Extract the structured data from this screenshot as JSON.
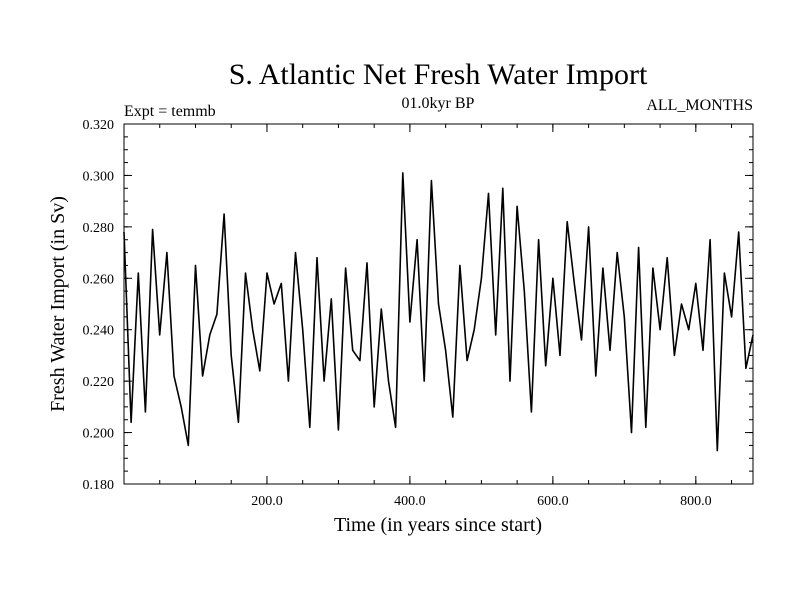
{
  "chart_data": {
    "type": "line",
    "title": "S. Atlantic Net Fresh Water Import",
    "subtitle_left": "Expt = temmb",
    "subtitle_center": "01.0kyr BP",
    "subtitle_right": "ALL_MONTHS",
    "xlabel": "Time (in years since start)",
    "ylabel": "Fresh Water Import (in Sv)",
    "xlim": [
      0,
      880
    ],
    "ylim": [
      0.18,
      0.32
    ],
    "xticks": [
      200,
      400,
      600,
      800
    ],
    "xtick_labels": [
      "200.0",
      "400.0",
      "600.0",
      "800.0"
    ],
    "yticks": [
      0.18,
      0.2,
      0.22,
      0.24,
      0.26,
      0.28,
      0.3,
      0.32
    ],
    "ytick_labels": [
      "0.180",
      "0.200",
      "0.220",
      "0.240",
      "0.260",
      "0.280",
      "0.300",
      "0.320"
    ],
    "grid": false,
    "series": [
      {
        "name": "net fresh water import",
        "color": "#000000",
        "x": [
          0,
          10,
          20,
          30,
          40,
          50,
          60,
          70,
          80,
          90,
          100,
          110,
          120,
          130,
          140,
          150,
          160,
          170,
          180,
          190,
          200,
          210,
          220,
          230,
          240,
          250,
          260,
          270,
          280,
          290,
          300,
          310,
          320,
          330,
          340,
          350,
          360,
          370,
          380,
          390,
          400,
          410,
          420,
          430,
          440,
          450,
          460,
          470,
          480,
          490,
          500,
          510,
          520,
          530,
          540,
          550,
          560,
          570,
          580,
          590,
          600,
          610,
          620,
          630,
          640,
          650,
          660,
          670,
          680,
          690,
          700,
          710,
          720,
          730,
          740,
          750,
          760,
          770,
          780,
          790,
          800,
          810,
          820,
          830,
          840,
          850,
          860,
          870,
          880
        ],
        "values": [
          0.278,
          0.204,
          0.262,
          0.208,
          0.279,
          0.238,
          0.27,
          0.222,
          0.21,
          0.195,
          0.265,
          0.222,
          0.238,
          0.246,
          0.285,
          0.23,
          0.204,
          0.262,
          0.24,
          0.224,
          0.262,
          0.25,
          0.258,
          0.22,
          0.27,
          0.24,
          0.202,
          0.268,
          0.22,
          0.252,
          0.201,
          0.264,
          0.232,
          0.228,
          0.266,
          0.21,
          0.248,
          0.22,
          0.202,
          0.301,
          0.243,
          0.275,
          0.22,
          0.298,
          0.25,
          0.232,
          0.206,
          0.265,
          0.228,
          0.24,
          0.26,
          0.293,
          0.238,
          0.295,
          0.22,
          0.288,
          0.255,
          0.208,
          0.275,
          0.226,
          0.26,
          0.23,
          0.282,
          0.258,
          0.236,
          0.28,
          0.222,
          0.264,
          0.232,
          0.27,
          0.245,
          0.2,
          0.272,
          0.202,
          0.264,
          0.24,
          0.268,
          0.23,
          0.25,
          0.24,
          0.258,
          0.232,
          0.275,
          0.193,
          0.262,
          0.245,
          0.278,
          0.225,
          0.238
        ]
      }
    ]
  }
}
